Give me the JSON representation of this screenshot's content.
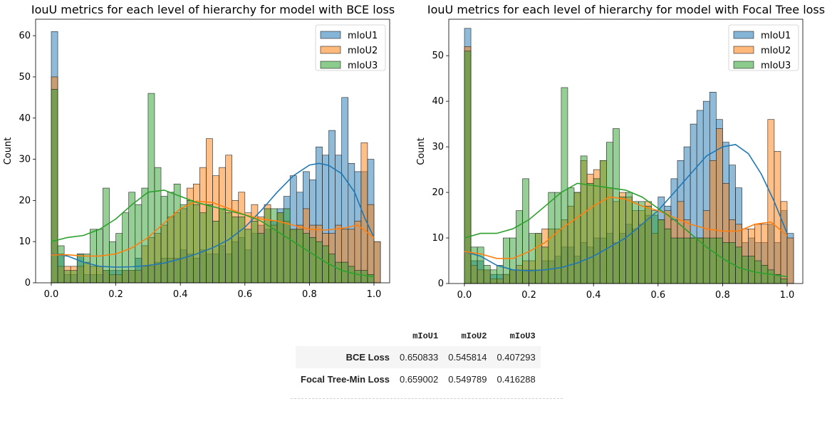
{
  "chart_data": [
    {
      "type": "histogram",
      "title": "IouU metrics for each level of hierarchy for model with BCE loss",
      "xlabel": "",
      "ylabel": "Count",
      "xlim": [
        0.0,
        1.0
      ],
      "ylim": [
        0,
        64
      ],
      "xticks": [
        "0.0",
        "0.2",
        "0.4",
        "0.6",
        "0.8",
        "1.0"
      ],
      "yticks": [
        "0",
        "10",
        "20",
        "30",
        "40",
        "50",
        "60"
      ],
      "legend": "top-right",
      "bins": 50,
      "series": [
        {
          "name": "mIoU1",
          "color": "#1f77b4",
          "values": [
            61,
            7,
            2,
            2,
            7,
            2,
            2,
            2,
            3,
            3,
            3,
            3,
            3,
            6,
            4,
            4,
            5,
            6,
            6,
            6,
            8,
            7,
            6,
            8,
            7,
            7,
            9,
            7,
            10,
            11,
            8,
            12,
            14,
            13,
            15,
            18,
            21,
            26,
            22,
            27,
            25,
            33,
            31,
            37,
            31,
            45,
            29,
            27,
            27,
            30,
            10
          ],
          "kde": [
            [
              0,
              7
            ],
            [
              0.05,
              6.5
            ],
            [
              0.1,
              5
            ],
            [
              0.15,
              4
            ],
            [
              0.2,
              3.8
            ],
            [
              0.25,
              3.9
            ],
            [
              0.3,
              4.2
            ],
            [
              0.35,
              4.8
            ],
            [
              0.4,
              5.8
            ],
            [
              0.45,
              7
            ],
            [
              0.5,
              8.5
            ],
            [
              0.55,
              10.5
            ],
            [
              0.6,
              13.5
            ],
            [
              0.65,
              17.5
            ],
            [
              0.7,
              22
            ],
            [
              0.75,
              26
            ],
            [
              0.8,
              28.6
            ],
            [
              0.83,
              29
            ],
            [
              0.86,
              28.5
            ],
            [
              0.9,
              26.5
            ],
            [
              0.94,
              22
            ],
            [
              0.97,
              16
            ],
            [
              1.0,
              11
            ]
          ]
        },
        {
          "name": "mIoU2",
          "color": "#ff7f0e",
          "values": [
            50,
            4,
            4,
            4,
            4,
            5,
            4,
            4,
            3,
            2,
            2,
            3,
            3,
            3,
            9,
            11,
            12,
            14,
            16,
            17,
            18,
            23,
            24,
            28,
            35,
            26,
            28,
            31,
            20,
            22,
            17,
            19,
            16,
            19,
            14,
            17,
            15,
            13,
            14,
            18,
            14,
            14,
            12,
            12,
            14,
            13,
            13,
            15,
            34,
            19,
            10
          ],
          "kde": [
            [
              0,
              6.8
            ],
            [
              0.05,
              6.8
            ],
            [
              0.1,
              6.5
            ],
            [
              0.15,
              6.5
            ],
            [
              0.2,
              7
            ],
            [
              0.25,
              8.5
            ],
            [
              0.3,
              11
            ],
            [
              0.35,
              14.5
            ],
            [
              0.4,
              18
            ],
            [
              0.45,
              19.8
            ],
            [
              0.5,
              19.5
            ],
            [
              0.55,
              18
            ],
            [
              0.6,
              16.5
            ],
            [
              0.65,
              15.5
            ],
            [
              0.7,
              15
            ],
            [
              0.75,
              14
            ],
            [
              0.8,
              13
            ],
            [
              0.85,
              12.8
            ],
            [
              0.9,
              13.2
            ],
            [
              0.95,
              14
            ],
            [
              1.0,
              11
            ]
          ]
        },
        {
          "name": "mIoU3",
          "color": "#2ca02c",
          "values": [
            47,
            9,
            3,
            3,
            7,
            7,
            13,
            13,
            23,
            10,
            12,
            17,
            22,
            19,
            23,
            46,
            28,
            21,
            22,
            24,
            19,
            20,
            19,
            17,
            19,
            15,
            18,
            17,
            16,
            16,
            13,
            15,
            12,
            18,
            18,
            17,
            18,
            13,
            13,
            12,
            11,
            10,
            9,
            7,
            5,
            5,
            4,
            3,
            3,
            2,
            0
          ],
          "kde": [
            [
              0,
              10
            ],
            [
              0.05,
              11
            ],
            [
              0.1,
              11.5
            ],
            [
              0.15,
              13
            ],
            [
              0.2,
              15.5
            ],
            [
              0.25,
              19
            ],
            [
              0.3,
              22
            ],
            [
              0.35,
              22.5
            ],
            [
              0.4,
              21
            ],
            [
              0.45,
              19.5
            ],
            [
              0.5,
              18.5
            ],
            [
              0.55,
              17.5
            ],
            [
              0.6,
              16.5
            ],
            [
              0.65,
              15
            ],
            [
              0.7,
              12.5
            ],
            [
              0.75,
              10
            ],
            [
              0.8,
              7.5
            ],
            [
              0.85,
              5
            ],
            [
              0.9,
              3
            ],
            [
              0.95,
              2
            ],
            [
              1.0,
              1.5
            ]
          ]
        }
      ]
    },
    {
      "type": "histogram",
      "title": "IouU metrics for each level of hierarchy for model with Focal Tree loss",
      "xlabel": "",
      "ylabel": "Count",
      "xlim": [
        0.0,
        1.0
      ],
      "ylim": [
        0,
        58
      ],
      "xticks": [
        "0.0",
        "0.2",
        "0.4",
        "0.6",
        "0.8",
        "1.0"
      ],
      "yticks": [
        "0",
        "10",
        "20",
        "30",
        "40",
        "50"
      ],
      "legend": "top-right",
      "bins": 50,
      "series": [
        {
          "name": "mIoU1",
          "color": "#1f77b4",
          "values": [
            56,
            5,
            5,
            3,
            2,
            2,
            2,
            3,
            3,
            3,
            3,
            3,
            5,
            5,
            6,
            8,
            8,
            6,
            9,
            8,
            10,
            10,
            11,
            9,
            11,
            13,
            12,
            13,
            15,
            15,
            19,
            17,
            23,
            27,
            30,
            35,
            38,
            40,
            42,
            36,
            31,
            26,
            21,
            9,
            10,
            9,
            9,
            13,
            9,
            16,
            11
          ],
          "kde": [
            [
              0,
              7
            ],
            [
              0.05,
              6
            ],
            [
              0.1,
              4
            ],
            [
              0.15,
              3
            ],
            [
              0.2,
              2.8
            ],
            [
              0.25,
              3
            ],
            [
              0.3,
              3.5
            ],
            [
              0.35,
              4.5
            ],
            [
              0.4,
              6
            ],
            [
              0.45,
              8
            ],
            [
              0.5,
              10
            ],
            [
              0.55,
              13
            ],
            [
              0.6,
              16
            ],
            [
              0.65,
              20
            ],
            [
              0.7,
              24
            ],
            [
              0.75,
              28
            ],
            [
              0.8,
              30
            ],
            [
              0.84,
              30.5
            ],
            [
              0.88,
              28.5
            ],
            [
              0.92,
              24
            ],
            [
              0.96,
              18
            ],
            [
              1.0,
              11
            ]
          ]
        },
        {
          "name": "mIoU2",
          "color": "#ff7f0e",
          "values": [
            52,
            4,
            3,
            3,
            1,
            1,
            2,
            3,
            4,
            5,
            5,
            11,
            12,
            12,
            12,
            14,
            17,
            20,
            27,
            24,
            25,
            27,
            21,
            18,
            20,
            19,
            16,
            16,
            18,
            11,
            14,
            16,
            14,
            18,
            14,
            10,
            10,
            16,
            27,
            34,
            22,
            14,
            13,
            12,
            12,
            13,
            13,
            36,
            29,
            18,
            10
          ],
          "kde": [
            [
              0,
              7
            ],
            [
              0.05,
              6.5
            ],
            [
              0.1,
              5.5
            ],
            [
              0.15,
              5.5
            ],
            [
              0.2,
              7
            ],
            [
              0.25,
              9
            ],
            [
              0.3,
              12
            ],
            [
              0.35,
              14.5
            ],
            [
              0.4,
              17
            ],
            [
              0.45,
              19
            ],
            [
              0.5,
              18.5
            ],
            [
              0.55,
              17
            ],
            [
              0.6,
              16
            ],
            [
              0.65,
              14.5
            ],
            [
              0.7,
              13
            ],
            [
              0.75,
              12
            ],
            [
              0.8,
              11.5
            ],
            [
              0.85,
              11.5
            ],
            [
              0.9,
              13
            ],
            [
              0.95,
              13.5
            ],
            [
              1.0,
              10.5
            ]
          ]
        },
        {
          "name": "mIoU3",
          "color": "#2ca02c",
          "values": [
            51,
            8,
            8,
            4,
            3,
            4,
            10,
            10,
            16,
            23,
            11,
            11,
            8,
            20,
            20,
            43,
            21,
            20,
            28,
            22,
            23,
            27,
            31,
            34,
            19,
            20,
            18,
            18,
            17,
            16,
            14,
            12,
            10,
            10,
            10,
            10,
            10,
            10,
            10,
            10,
            9,
            9,
            8,
            6,
            6,
            5,
            4,
            3,
            2,
            1,
            0
          ],
          "kde": [
            [
              0,
              10
            ],
            [
              0.05,
              11
            ],
            [
              0.1,
              11
            ],
            [
              0.15,
              12
            ],
            [
              0.2,
              14
            ],
            [
              0.25,
              17
            ],
            [
              0.3,
              20
            ],
            [
              0.35,
              22
            ],
            [
              0.4,
              21.5
            ],
            [
              0.45,
              21
            ],
            [
              0.5,
              20.5
            ],
            [
              0.55,
              19
            ],
            [
              0.6,
              16.5
            ],
            [
              0.65,
              14
            ],
            [
              0.7,
              11
            ],
            [
              0.75,
              8
            ],
            [
              0.8,
              5.5
            ],
            [
              0.85,
              3.5
            ],
            [
              0.9,
              2.5
            ],
            [
              0.95,
              2
            ],
            [
              1.0,
              1.5
            ]
          ]
        }
      ]
    }
  ],
  "results_table": {
    "columns": [
      "mIoU1",
      "mIoU2",
      "mIoU3"
    ],
    "rows": [
      {
        "label": "BCE Loss",
        "values": [
          "0.650833",
          "0.545814",
          "0.407293"
        ]
      },
      {
        "label": "Focal Tree-Min Loss",
        "values": [
          "0.659002",
          "0.549789",
          "0.416288"
        ]
      }
    ]
  }
}
